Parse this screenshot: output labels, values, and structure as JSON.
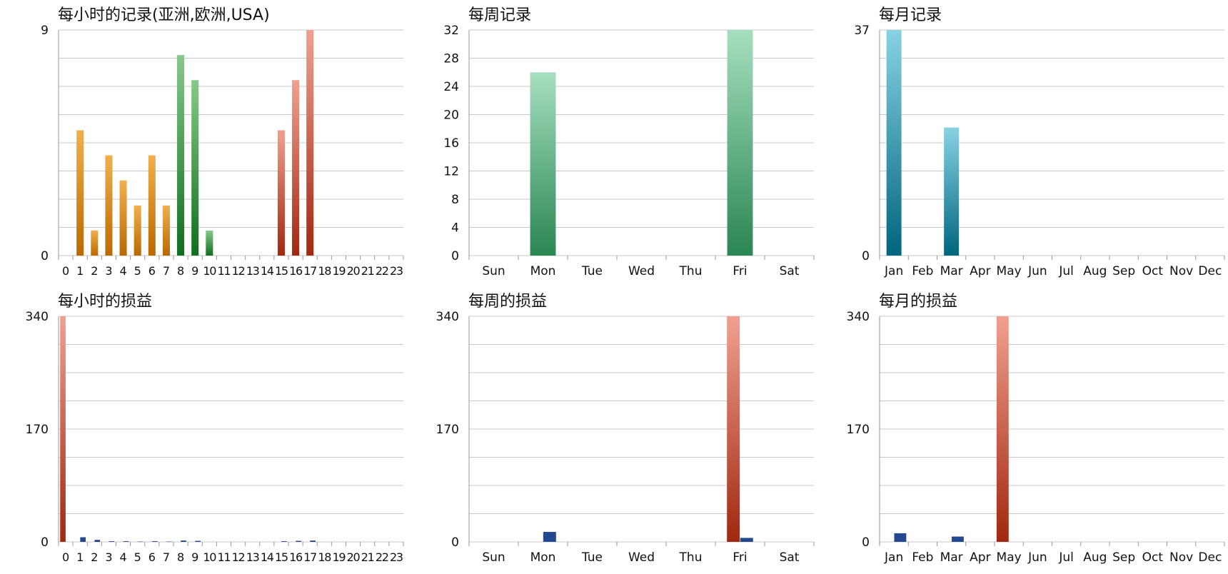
{
  "colors": {
    "orange_top": "#f0b04e",
    "orange_bottom": "#b86a00",
    "green_top": "#86c98a",
    "green_bottom": "#0f6e1e",
    "red_top": "#f0a090",
    "red_bottom": "#a02810",
    "mint_top": "#a6dfc0",
    "mint_bottom": "#2a8652",
    "teal_top": "#88d2e4",
    "teal_bottom": "#00657d",
    "navy": "#24488f",
    "grid": "#c8c8c8",
    "axis": "#999999",
    "text": "#111111"
  },
  "chart_data": [
    {
      "id": "hourly-records",
      "type": "bar",
      "title": "每小时的记录(亚洲,欧洲,USA)",
      "categories": [
        "0",
        "1",
        "2",
        "3",
        "4",
        "5",
        "6",
        "7",
        "8",
        "9",
        "10",
        "11",
        "12",
        "13",
        "14",
        "15",
        "16",
        "17",
        "18",
        "19",
        "20",
        "21",
        "22",
        "23"
      ],
      "values": [
        0,
        5,
        1,
        4,
        3,
        2,
        4,
        2,
        8,
        7,
        1,
        0,
        0,
        0,
        0,
        5,
        7,
        9,
        0,
        0,
        0,
        0,
        0,
        0
      ],
      "bar_colors": [
        "orange",
        "orange",
        "orange",
        "orange",
        "orange",
        "orange",
        "orange",
        "orange",
        "green",
        "green",
        "green",
        "green",
        "green",
        "green",
        "green",
        "red",
        "red",
        "red",
        "red",
        "red",
        "red",
        "red",
        "red",
        "red"
      ],
      "ylim": [
        0,
        9
      ],
      "yticks": [
        0,
        9
      ],
      "grid_lines": 8,
      "grid": true
    },
    {
      "id": "weekly-records",
      "type": "bar",
      "title": "每周记录",
      "categories": [
        "Sun",
        "Mon",
        "Tue",
        "Wed",
        "Thu",
        "Fri",
        "Sat"
      ],
      "values": [
        0,
        26,
        0,
        0,
        0,
        32,
        0
      ],
      "bar_colors": [
        "mint",
        "mint",
        "mint",
        "mint",
        "mint",
        "mint",
        "mint"
      ],
      "ylim": [
        0,
        32
      ],
      "yticks": [
        0,
        4,
        8,
        12,
        16,
        20,
        24,
        28,
        32
      ],
      "grid_lines": 8,
      "grid": true
    },
    {
      "id": "monthly-records",
      "type": "bar",
      "title": "每月记录",
      "categories": [
        "Jan",
        "Feb",
        "Mar",
        "Apr",
        "May",
        "Jun",
        "Jul",
        "Aug",
        "Sep",
        "Oct",
        "Nov",
        "Dec"
      ],
      "values": [
        37,
        0,
        21,
        0,
        0,
        0,
        0,
        0,
        0,
        0,
        0,
        0
      ],
      "bar_colors": [
        "teal",
        "teal",
        "teal",
        "teal",
        "teal",
        "teal",
        "teal",
        "teal",
        "teal",
        "teal",
        "teal",
        "teal"
      ],
      "ylim": [
        0,
        37
      ],
      "yticks": [
        0,
        37
      ],
      "grid_lines": 8,
      "grid": true
    },
    {
      "id": "hourly-pnl",
      "type": "bar",
      "title": "每小时的损益",
      "categories": [
        "0",
        "1",
        "2",
        "3",
        "4",
        "5",
        "6",
        "7",
        "8",
        "9",
        "10",
        "11",
        "12",
        "13",
        "14",
        "15",
        "16",
        "17",
        "18",
        "19",
        "20",
        "21",
        "22",
        "23"
      ],
      "series": [
        {
          "color": "red",
          "values": [
            340,
            0,
            0,
            0,
            0,
            0,
            0,
            0,
            0,
            0,
            0,
            0,
            0,
            0,
            0,
            0,
            0,
            0,
            0,
            0,
            0,
            0,
            0,
            0
          ]
        },
        {
          "color": "navy",
          "values": [
            0,
            7,
            3,
            1,
            1,
            0.5,
            1,
            0.5,
            2,
            1.5,
            0,
            0,
            0,
            0,
            0,
            1,
            1.5,
            2,
            0,
            0,
            0,
            0,
            0,
            0
          ]
        }
      ],
      "ylim": [
        0,
        340
      ],
      "yticks": [
        0,
        170,
        340
      ],
      "grid_lines": 8,
      "grid": true
    },
    {
      "id": "weekly-pnl",
      "type": "bar",
      "title": "每周的损益",
      "categories": [
        "Sun",
        "Mon",
        "Tue",
        "Wed",
        "Thu",
        "Fri",
        "Sat"
      ],
      "series": [
        {
          "color": "red",
          "values": [
            0,
            0,
            0,
            0,
            0,
            340,
            0
          ]
        },
        {
          "color": "navy",
          "values": [
            0,
            15,
            0,
            0,
            0,
            6,
            0
          ]
        }
      ],
      "ylim": [
        0,
        340
      ],
      "yticks": [
        0,
        170,
        340
      ],
      "grid_lines": 8,
      "grid": true
    },
    {
      "id": "monthly-pnl",
      "type": "bar",
      "title": "每月的损益",
      "categories": [
        "Jan",
        "Feb",
        "Mar",
        "Apr",
        "May",
        "Jun",
        "Jul",
        "Aug",
        "Sep",
        "Oct",
        "Nov",
        "Dec"
      ],
      "series": [
        {
          "color": "red",
          "values": [
            0,
            0,
            0,
            0,
            340,
            0,
            0,
            0,
            0,
            0,
            0,
            0
          ]
        },
        {
          "color": "navy",
          "values": [
            13,
            0,
            8,
            0,
            0,
            0,
            0,
            0,
            0,
            0,
            0,
            0
          ]
        }
      ],
      "ylim": [
        0,
        340
      ],
      "yticks": [
        0,
        170,
        340
      ],
      "grid_lines": 8,
      "grid": true
    }
  ]
}
